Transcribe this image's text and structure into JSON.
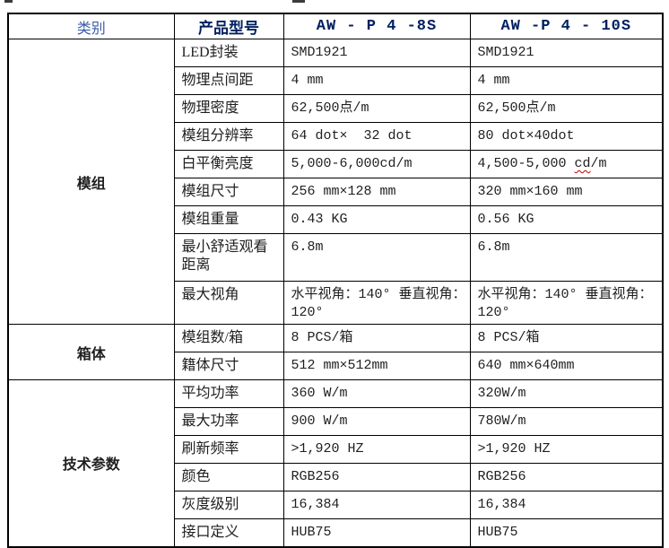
{
  "table": {
    "header": {
      "category": "类别",
      "product_model": "产品型号",
      "model_a": "AW - P 4 -8S",
      "model_b": "AW -P 4 - 10S"
    },
    "groups": [
      {
        "name": "模组",
        "rows": [
          {
            "label": "LED封装",
            "v1": "SMD1921",
            "v2": "SMD1921"
          },
          {
            "label": "物理点间距",
            "v1": "4 mm",
            "v2": "4 mm"
          },
          {
            "label": "物理密度",
            "v1": "62,500点/m",
            "v2": "62,500点/m"
          },
          {
            "label": "模组分辨率",
            "v1": "64 dot×  32 dot",
            "v2": "80 dot×40dot"
          },
          {
            "label": "白平衡亮度",
            "v1": "5,000-6,000cd/m",
            "v2": "4,500-5,000 cd/m",
            "v2_squiggle": "cd"
          },
          {
            "label": "模组尺寸",
            "v1": "256 mm×128 mm",
            "v2": "320 mm×160 mm"
          },
          {
            "label": "模组重量",
            "v1": "0.43 KG",
            "v2": "0.56 KG"
          },
          {
            "label": "最小舒适观看距离",
            "v1": "6.8m",
            "v2": "6.8m"
          },
          {
            "label": "最大视角",
            "v1": "水平视角：140° 垂直视角： 120°",
            "v2": "水平视角：140° 垂直视角： 120°"
          }
        ]
      },
      {
        "name": "箱体",
        "rows": [
          {
            "label": "模组数/箱",
            "v1": "8 PCS/箱",
            "v2": "8 PCS/箱"
          },
          {
            "label": "籍体尺寸",
            "v1": "512 mm×512mm",
            "v2": "640 mm×640mm"
          }
        ]
      },
      {
        "name": "技术参数",
        "rows": [
          {
            "label": "平均功率",
            "v1": "360 W/m",
            "v2": "320W/m"
          },
          {
            "label": "最大功率",
            "v1": "900 W/m",
            "v2": "780W/m"
          },
          {
            "label": "刷新频率",
            "v1": ">1,920 HZ",
            "v2": ">1,920 HZ"
          },
          {
            "label": "颜色",
            "v1": "RGB256",
            "v2": "RGB256"
          },
          {
            "label": "灰度级别",
            "v1": "16,384",
            "v2": "16,384"
          },
          {
            "label": "接口定义",
            "v1": "HUB75",
            "v2": "HUB75"
          }
        ]
      }
    ]
  },
  "colors": {
    "header_navy": "#002060",
    "category_blue": "#3c5ba9",
    "text": "#1f1f1f",
    "border": "#000000",
    "squiggle_red": "#c00000"
  }
}
